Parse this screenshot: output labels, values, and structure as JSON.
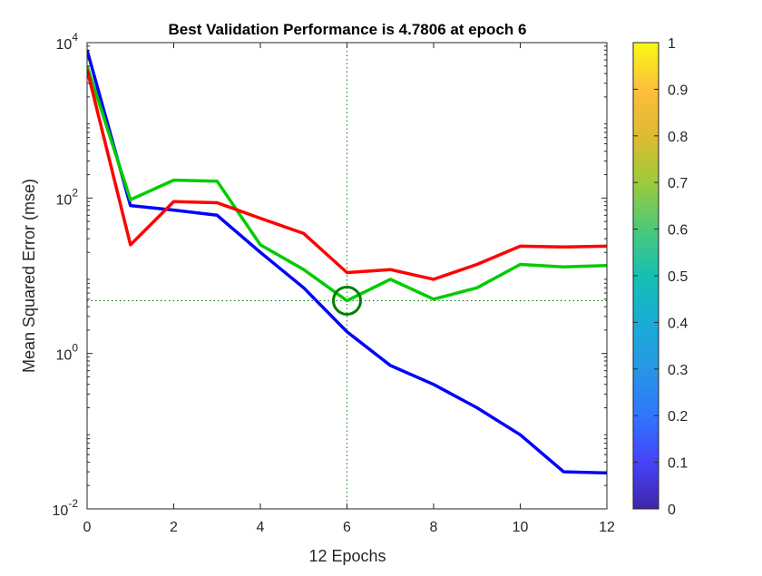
{
  "chart_data": {
    "type": "line",
    "title": "Best Validation Performance is 4.7806 at epoch 6",
    "xlabel": "12 Epochs",
    "ylabel": "Mean Squared Error  (mse)",
    "x": [
      0,
      1,
      2,
      3,
      4,
      5,
      6,
      7,
      8,
      9,
      10,
      11,
      12
    ],
    "xlim": [
      0,
      12
    ],
    "ylim": [
      0.01,
      10000
    ],
    "yscale": "log",
    "x_ticks": [
      "0",
      "2",
      "4",
      "6",
      "8",
      "10",
      "12"
    ],
    "y_ticks": [
      {
        "base": "10",
        "exp": "-2"
      },
      {
        "base": "10",
        "exp": "0"
      },
      {
        "base": "10",
        "exp": "2"
      },
      {
        "base": "10",
        "exp": "4"
      }
    ],
    "series": [
      {
        "color": "#0000ff",
        "values": [
          8000,
          80,
          70,
          60,
          20,
          7,
          1.9,
          0.7,
          0.4,
          0.2,
          0.09,
          0.03,
          0.029
        ]
      },
      {
        "color": "#00cc00",
        "values": [
          5000,
          95,
          170,
          165,
          25,
          12,
          4.7806,
          9,
          5,
          7,
          14,
          13,
          13.5
        ]
      },
      {
        "color": "#ff0000",
        "values": [
          4500,
          25,
          90,
          87,
          55,
          35,
          11,
          12,
          9,
          14,
          24,
          23.5,
          24
        ]
      }
    ],
    "best": {
      "x": 6,
      "y": 4.7806,
      "color": "#008000"
    },
    "grid": false,
    "colorbar": {
      "ticks": [
        "0",
        "0.1",
        "0.2",
        "0.3",
        "0.4",
        "0.5",
        "0.6",
        "0.7",
        "0.8",
        "0.9",
        "1"
      ],
      "colors": [
        "#3e26a8",
        "#4743f8",
        "#2f76fc",
        "#2797e5",
        "#19acd5",
        "#16bfb1",
        "#4cc97a",
        "#9ccb3b",
        "#dfba30",
        "#fdbe3c",
        "#f9fb15"
      ]
    }
  }
}
